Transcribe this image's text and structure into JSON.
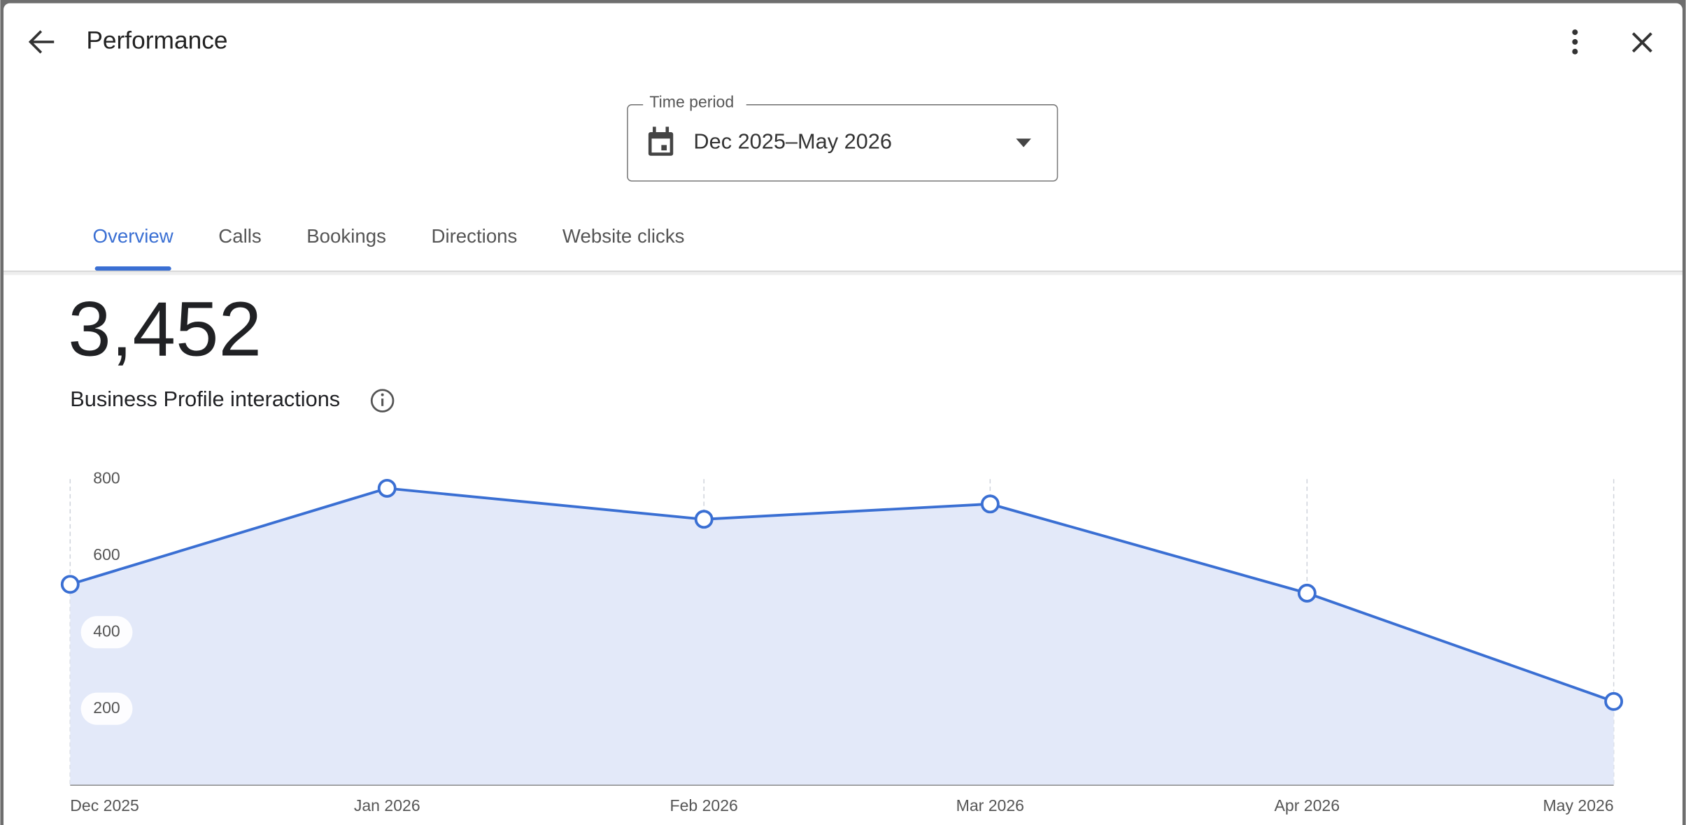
{
  "header": {
    "title": "Performance"
  },
  "time_period": {
    "label": "Time period",
    "value": "Dec 2025–May 2026"
  },
  "tabs": [
    "Overview",
    "Calls",
    "Bookings",
    "Directions",
    "Website clicks"
  ],
  "active_tab": 0,
  "total": {
    "value": "3,452",
    "label": "Business Profile interactions"
  },
  "chart_data": {
    "type": "area",
    "x": [
      "Dec 2025",
      "Jan 2026",
      "Feb 2026",
      "Mar 2026",
      "Apr 2026",
      "May 2026"
    ],
    "values": [
      525,
      776,
      695,
      735,
      502,
      219
    ],
    "color": "#3a6fd3",
    "fill": "#e3e9f9",
    "ylim": [
      0,
      800
    ],
    "yticks": [
      200,
      400,
      600,
      800
    ]
  }
}
